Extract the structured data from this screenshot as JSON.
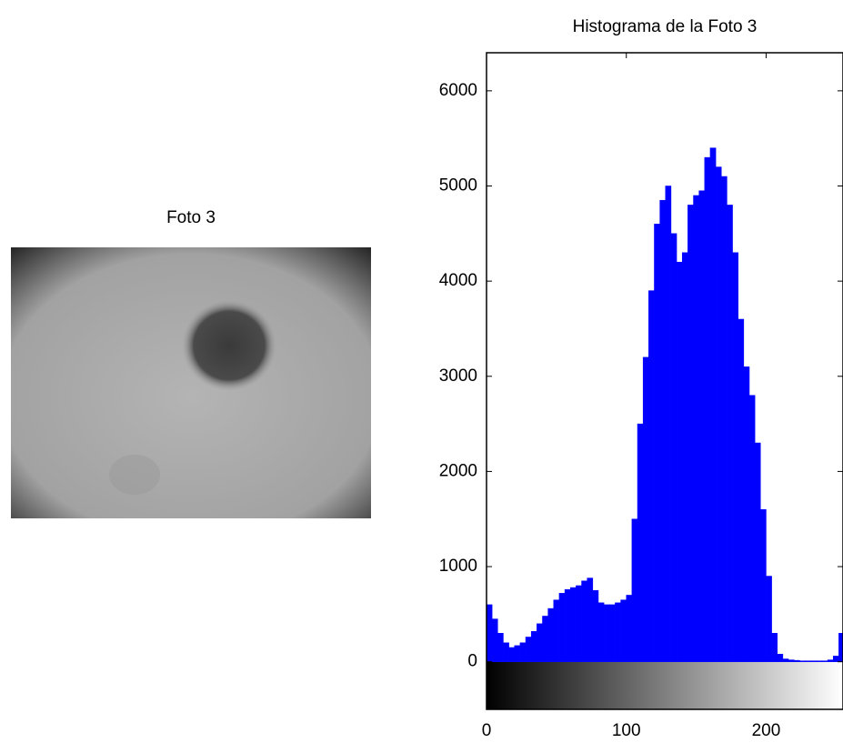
{
  "image_panel": {
    "title": "Foto 3"
  },
  "chart_data": {
    "type": "histogram",
    "title": "Histograma de la Foto 3",
    "color": "#0000ff",
    "bins": [
      0,
      4,
      8,
      12,
      16,
      20,
      24,
      28,
      32,
      36,
      40,
      44,
      48,
      52,
      56,
      60,
      64,
      68,
      72,
      76,
      80,
      84,
      88,
      92,
      96,
      100,
      104,
      108,
      112,
      116,
      120,
      124,
      128,
      132,
      136,
      140,
      144,
      148,
      152,
      156,
      160,
      164,
      168,
      172,
      176,
      180,
      184,
      188,
      192,
      196,
      200,
      204,
      208,
      212,
      216,
      220,
      224,
      228,
      232,
      236,
      240,
      244,
      248,
      252,
      256
    ],
    "values": [
      600,
      450,
      300,
      200,
      150,
      170,
      200,
      260,
      320,
      400,
      480,
      560,
      650,
      720,
      760,
      780,
      800,
      850,
      880,
      750,
      620,
      600,
      600,
      620,
      650,
      700,
      1500,
      2500,
      3200,
      3900,
      4600,
      4850,
      5000,
      4500,
      4200,
      4300,
      4800,
      4900,
      4950,
      5300,
      5400,
      5200,
      5100,
      4800,
      4300,
      3600,
      3100,
      2800,
      2300,
      1600,
      900,
      300,
      80,
      30,
      20,
      15,
      10,
      10,
      10,
      10,
      10,
      20,
      60,
      300
    ],
    "xlim": [
      0,
      255
    ],
    "xticks": [
      0,
      100,
      200
    ],
    "ylim": [
      -500,
      6400
    ],
    "yticks": [
      0,
      1000,
      2000,
      3000,
      4000,
      5000,
      6000
    ]
  }
}
